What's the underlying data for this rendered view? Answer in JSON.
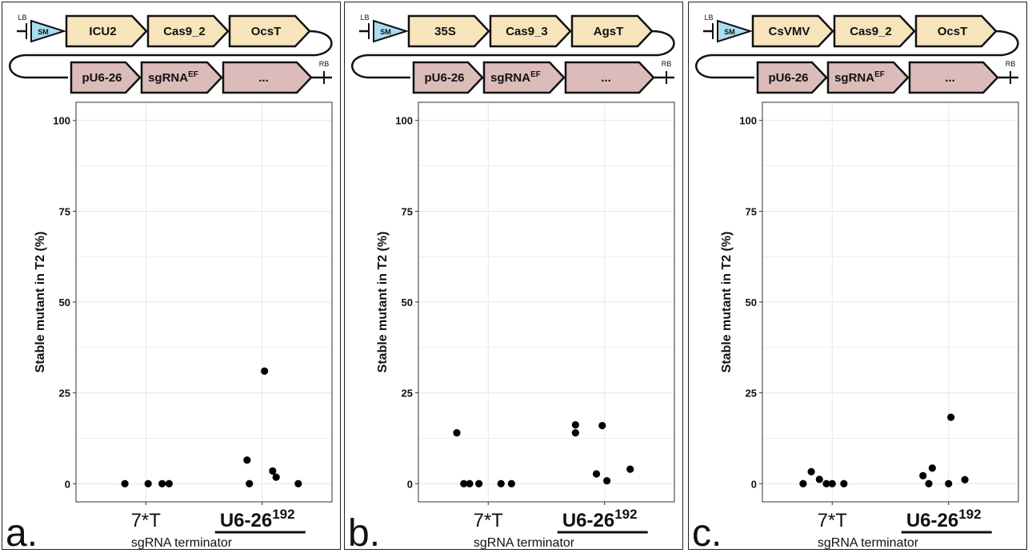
{
  "colors": {
    "promoter_box": "#f8e4bb",
    "rna_box": "#dcbcbb",
    "marker_box": "#a9dcef",
    "grid": "#e6e6e6",
    "point": "#000000"
  },
  "chart_data": [
    {
      "panel_label": "a.",
      "type": "scatter",
      "construct": {
        "top": [
          "ICU2",
          "Cas9_2",
          "OcsT"
        ],
        "bottom": [
          "pU6-26",
          "sgRNA",
          "..."
        ],
        "sgRNA_sup": "EF",
        "marker": "SM",
        "left_border": "LB",
        "right_border": "RB"
      },
      "ylabel": "Stable mutant in T2 (%)",
      "xlabel": "sgRNA terminator",
      "ylim": [
        -5,
        105
      ],
      "yticks": [
        "0",
        "25",
        "50",
        "75",
        "100"
      ],
      "categories": [
        "7*T",
        "U6-26"
      ],
      "category2_sup": "192",
      "grid": true,
      "points": [
        {
          "x": 1,
          "dx": -0.18,
          "y": 0
        },
        {
          "x": 1,
          "dx": 0.02,
          "y": 0
        },
        {
          "x": 1,
          "dx": 0.14,
          "y": 0
        },
        {
          "x": 1,
          "dx": 0.2,
          "y": 0
        },
        {
          "x": 2,
          "dx": -0.13,
          "y": 6.5
        },
        {
          "x": 2,
          "dx": -0.11,
          "y": 0
        },
        {
          "x": 2,
          "dx": 0.02,
          "y": 31
        },
        {
          "x": 2,
          "dx": 0.09,
          "y": 3.5
        },
        {
          "x": 2,
          "dx": 0.12,
          "y": 1.8
        },
        {
          "x": 2,
          "dx": 0.31,
          "y": 0
        }
      ]
    },
    {
      "panel_label": "b.",
      "type": "scatter",
      "construct": {
        "top": [
          "35S",
          "Cas9_3",
          "AgsT"
        ],
        "bottom": [
          "pU6-26",
          "sgRNA",
          "..."
        ],
        "sgRNA_sup": "EF",
        "marker": "SM",
        "left_border": "LB",
        "right_border": "RB"
      },
      "ylabel": "Stable mutant in T2 (%)",
      "xlabel": "sgRNA terminator",
      "ylim": [
        -5,
        105
      ],
      "yticks": [
        "0",
        "25",
        "50",
        "75",
        "100"
      ],
      "categories": [
        "7*T",
        "U6-26"
      ],
      "category2_sup": "192",
      "grid": true,
      "points": [
        {
          "x": 1,
          "dx": -0.27,
          "y": 14
        },
        {
          "x": 1,
          "dx": -0.21,
          "y": 0
        },
        {
          "x": 1,
          "dx": -0.16,
          "y": 0
        },
        {
          "x": 1,
          "dx": -0.08,
          "y": 0
        },
        {
          "x": 1,
          "dx": 0.11,
          "y": 0
        },
        {
          "x": 1,
          "dx": 0.2,
          "y": 0
        },
        {
          "x": 2,
          "dx": -0.25,
          "y": 16.2
        },
        {
          "x": 2,
          "dx": -0.25,
          "y": 14
        },
        {
          "x": 2,
          "dx": -0.02,
          "y": 16
        },
        {
          "x": 2,
          "dx": -0.07,
          "y": 2.7
        },
        {
          "x": 2,
          "dx": 0.02,
          "y": 0.8
        },
        {
          "x": 2,
          "dx": 0.22,
          "y": 4
        }
      ]
    },
    {
      "panel_label": "c.",
      "type": "scatter",
      "construct": {
        "top": [
          "CsVMV",
          "Cas9_2",
          "OcsT"
        ],
        "bottom": [
          "pU6-26",
          "sgRNA",
          "..."
        ],
        "sgRNA_sup": "EF",
        "marker": "SM",
        "left_border": "LB",
        "right_border": "RB"
      },
      "ylabel": "Stable mutant in T2 (%)",
      "xlabel": "sgRNA terminator",
      "ylim": [
        -5,
        105
      ],
      "yticks": [
        "0",
        "25",
        "50",
        "75",
        "100"
      ],
      "categories": [
        "7*T",
        "U6-26"
      ],
      "category2_sup": "192",
      "grid": true,
      "points": [
        {
          "x": 1,
          "dx": -0.25,
          "y": 0
        },
        {
          "x": 1,
          "dx": -0.18,
          "y": 3.3
        },
        {
          "x": 1,
          "dx": -0.11,
          "y": 1.2
        },
        {
          "x": 1,
          "dx": -0.05,
          "y": 0
        },
        {
          "x": 1,
          "dx": 0.0,
          "y": 0
        },
        {
          "x": 1,
          "dx": 0.1,
          "y": 0
        },
        {
          "x": 2,
          "dx": -0.22,
          "y": 2.2
        },
        {
          "x": 2,
          "dx": -0.17,
          "y": 0
        },
        {
          "x": 2,
          "dx": -0.14,
          "y": 4.3
        },
        {
          "x": 2,
          "dx": 0.0,
          "y": 0
        },
        {
          "x": 2,
          "dx": 0.02,
          "y": 18.3
        },
        {
          "x": 2,
          "dx": 0.14,
          "y": 1.1
        }
      ]
    }
  ]
}
